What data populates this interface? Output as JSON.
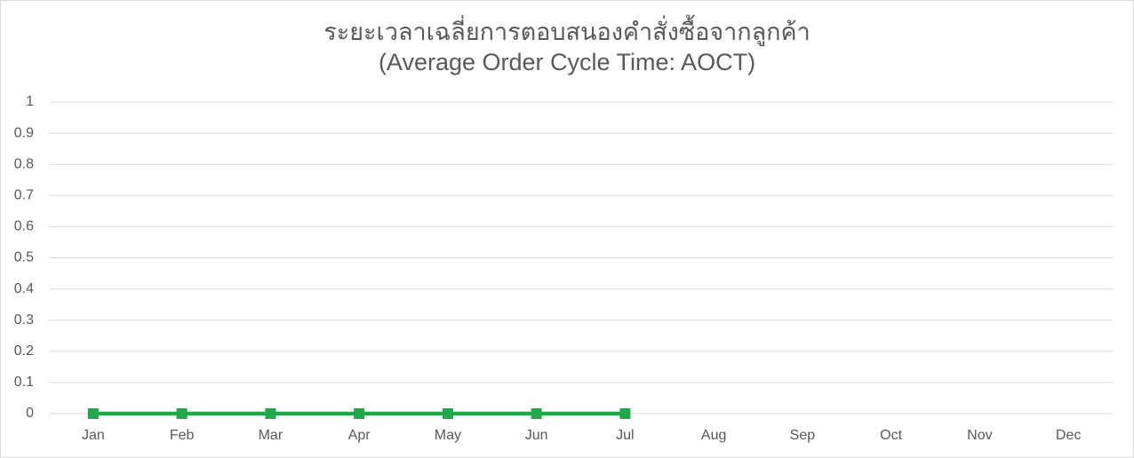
{
  "chart_data": {
    "type": "line",
    "title": "ระยะเวลาเฉลี่ยการตอบสนองคำสั่งซื้อจากลูกค้า",
    "subtitle": "(Average Order Cycle Time: AOCT)",
    "categories": [
      "Jan",
      "Feb",
      "Mar",
      "Apr",
      "May",
      "Jun",
      "Jul",
      "Aug",
      "Sep",
      "Oct",
      "Nov",
      "Dec"
    ],
    "series": [
      {
        "color": "#22a84a",
        "values": [
          0,
          0,
          0,
          0,
          0,
          0,
          0,
          null,
          null,
          null,
          null,
          null
        ]
      }
    ],
    "ylim": [
      0,
      1
    ],
    "yticks": [
      0,
      0.1,
      0.2,
      0.3,
      0.4,
      0.5,
      0.6,
      0.7,
      0.8,
      0.9,
      1
    ],
    "grid": true
  }
}
